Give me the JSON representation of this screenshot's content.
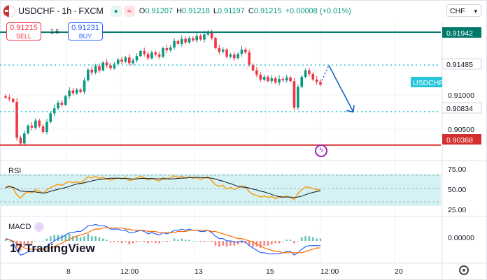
{
  "header": {
    "symbol": "USDCHF",
    "interval": "1h",
    "exchange": "FXCM",
    "separator": "·",
    "ohlc": [
      {
        "key": "O",
        "value": "0.91207"
      },
      {
        "key": "H",
        "value": "0.91218"
      },
      {
        "key": "L",
        "value": "0.91197"
      },
      {
        "key": "C",
        "value": "0.91215"
      }
    ],
    "change": "+0.00008 (+0.01%)"
  },
  "trade": {
    "sell_price": "0.91215",
    "sell_label": "SELL",
    "spread": "1.6",
    "buy_price": "0.91231",
    "buy_label": "BUY"
  },
  "currency": "CHF",
  "price_axis": {
    "ticks": [
      "0.91000",
      "0.90500"
    ],
    "tags": {
      "resistance": "0.91942",
      "mid": "0.91485",
      "support": "0.90834",
      "low": "0.90368",
      "symbol": "USDCHF"
    }
  },
  "rsi": {
    "label": "RSI",
    "ticks": [
      "75.00",
      "50.00",
      "25.00"
    ]
  },
  "macd": {
    "label": "MACD",
    "ticks": [
      "0.00000"
    ]
  },
  "time_axis": [
    "8",
    "12:00",
    "13",
    "15",
    "12:00",
    "20"
  ],
  "branding": {
    "logo": "TradingView"
  },
  "colors": {
    "up": "#089981",
    "down": "#f23645",
    "resistance": "#00796b",
    "support_dotted": "#26c6da",
    "low_line": "#d32f2f",
    "arrow": "#1565c0",
    "rsi_line": "#ff9800",
    "rsi_ma": "#131722",
    "rsi_band": "#d4f1f4",
    "macd_line": "#2962ff",
    "signal_line": "#ff6d00"
  },
  "chart_data": {
    "type": "candlestick",
    "price_range": [
      0.902,
      0.9208
    ],
    "closes": [
      0.9103,
      0.9101,
      0.9097,
      0.9047,
      0.9039,
      0.9053,
      0.9064,
      0.9061,
      0.9071,
      0.9063,
      0.9055,
      0.9069,
      0.9081,
      0.9088,
      0.9096,
      0.9093,
      0.9105,
      0.9113,
      0.9109,
      0.9114,
      0.9111,
      0.9127,
      0.9142,
      0.9138,
      0.9147,
      0.9141,
      0.9152,
      0.9148,
      0.9144,
      0.915,
      0.9156,
      0.9153,
      0.9159,
      0.9151,
      0.9155,
      0.9161,
      0.9168,
      0.9164,
      0.9158,
      0.9166,
      0.9163,
      0.916,
      0.9172,
      0.9169,
      0.9173,
      0.9182,
      0.9178,
      0.9185,
      0.918,
      0.9186,
      0.9183,
      0.9189,
      0.9184,
      0.9191,
      0.9194,
      0.9186,
      0.9172,
      0.9167,
      0.917,
      0.916,
      0.9163,
      0.9158,
      0.9164,
      0.917,
      0.9166,
      0.9149,
      0.9141,
      0.9135,
      0.9128,
      0.9132,
      0.9126,
      0.913,
      0.9124,
      0.9129,
      0.9127,
      0.9131,
      0.9126,
      0.9089,
      0.9118,
      0.9132,
      0.9141,
      0.9136,
      0.9128,
      0.9125,
      0.9121
    ],
    "projection": {
      "from": 0.9148,
      "to": 0.9083
    },
    "levels": [
      0.91942,
      0.91485,
      0.90834,
      0.90368
    ],
    "rsi": {
      "ylim": [
        0,
        100
      ],
      "values": [
        52,
        55,
        50,
        38,
        32,
        40,
        44,
        42,
        48,
        45,
        41,
        47,
        52,
        55,
        58,
        56,
        60,
        63,
        61,
        63,
        60,
        66,
        72,
        70,
        73,
        69,
        71,
        68,
        66,
        68,
        70,
        68,
        71,
        65,
        67,
        70,
        73,
        70,
        66,
        69,
        67,
        64,
        70,
        68,
        70,
        74,
        71,
        73,
        69,
        72,
        69,
        71,
        67,
        70,
        72,
        65,
        57,
        54,
        56,
        49,
        52,
        48,
        51,
        55,
        53,
        44,
        39,
        37,
        34,
        36,
        33,
        35,
        31,
        34,
        33,
        36,
        33,
        29,
        41,
        48,
        53,
        52,
        50,
        48,
        47
      ]
    },
    "macd": {
      "macd": [
        0.0002,
        0.0001,
        -0.0001,
        -0.0008,
        -0.0012,
        -0.0011,
        -0.0009,
        -0.0009,
        -0.0007,
        -0.0007,
        -0.0007,
        -0.0005,
        -0.0002,
        0.0,
        0.0002,
        0.0003,
        0.0005,
        0.0007,
        0.0007,
        0.0008,
        0.0008,
        0.001,
        0.0013,
        0.0013,
        0.0014,
        0.0013,
        0.0013,
        0.0012,
        0.001,
        0.001,
        0.001,
        0.0009,
        0.0009,
        0.0007,
        0.0007,
        0.0008,
        0.0009,
        0.0008,
        0.0006,
        0.0007,
        0.0006,
        0.0005,
        0.0007,
        0.0006,
        0.0007,
        0.0009,
        0.0009,
        0.001,
        0.0009,
        0.001,
        0.0009,
        0.0009,
        0.0008,
        0.0008,
        0.0009,
        0.0007,
        0.0004,
        0.0002,
        0.0002,
        0.0,
        0.0,
        -0.0001,
        -0.0001,
        0.0,
        -0.0001,
        -0.0004,
        -0.0006,
        -0.0008,
        -0.001,
        -0.001,
        -0.0011,
        -0.0011,
        -0.0011,
        -0.0011,
        -0.001,
        -0.0009,
        -0.0009,
        -0.0012,
        -0.001,
        -0.0007,
        -0.0005,
        -0.0004,
        -0.0004,
        -0.0004,
        -0.0004
      ],
      "signal": [
        0.0001,
        0.0001,
        0.0,
        -0.0002,
        -0.0004,
        -0.0006,
        -0.0007,
        -0.0007,
        -0.0007,
        -0.0007,
        -0.0007,
        -0.0007,
        -0.0006,
        -0.0005,
        -0.0003,
        -0.0002,
        0.0,
        0.0001,
        0.0003,
        0.0004,
        0.0005,
        0.0006,
        0.0007,
        0.0009,
        0.001,
        0.001,
        0.0011,
        0.0011,
        0.0011,
        0.0011,
        0.0011,
        0.0011,
        0.001,
        0.001,
        0.0009,
        0.0009,
        0.0009,
        0.0009,
        0.0008,
        0.0008,
        0.0008,
        0.0007,
        0.0007,
        0.0007,
        0.0007,
        0.0007,
        0.0008,
        0.0008,
        0.0008,
        0.0009,
        0.0009,
        0.0009,
        0.0009,
        0.0009,
        0.0009,
        0.0008,
        0.0008,
        0.0007,
        0.0006,
        0.0005,
        0.0004,
        0.0003,
        0.0002,
        0.0002,
        0.0001,
        0.0,
        -0.0001,
        -0.0003,
        -0.0004,
        -0.0006,
        -0.0007,
        -0.0008,
        -0.0009,
        -0.0009,
        -0.001,
        -0.001,
        -0.001,
        -0.001,
        -0.001,
        -0.001,
        -0.0009,
        -0.0008,
        -0.0007,
        -0.0006,
        -0.0006
      ],
      "ylim": [
        -0.0016,
        0.0016
      ]
    }
  }
}
